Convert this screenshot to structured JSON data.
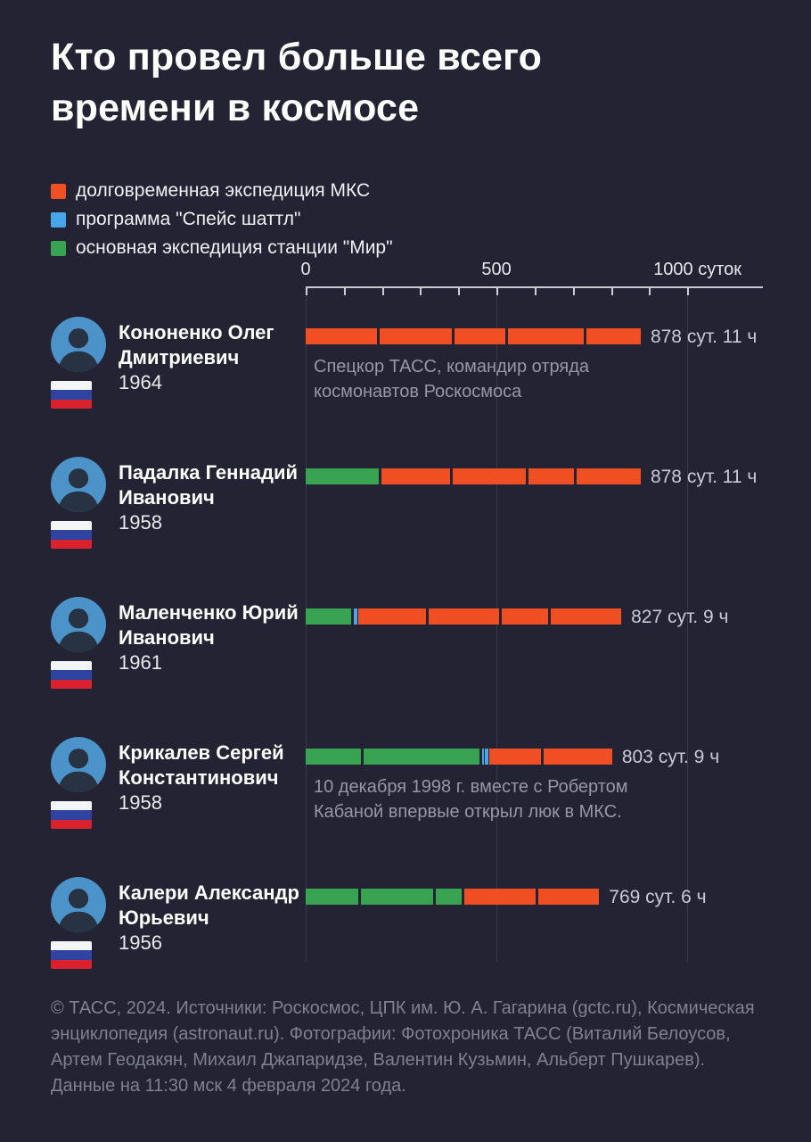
{
  "title": "Кто провел больше всего\nвремени в космосе",
  "legend": [
    {
      "key": "iss",
      "label": "долговременная экспедиция МКС"
    },
    {
      "key": "shuttle",
      "label": "программа \"Спейс шаттл\""
    },
    {
      "key": "mir",
      "label": "основная экспедиция станции \"Мир\""
    }
  ],
  "colors": {
    "iss": "#f04e23",
    "shuttle": "#47a6e9",
    "mir": "#38a452",
    "background": "#232333",
    "axis": "#c9ccd4"
  },
  "chart_data": {
    "type": "bar",
    "orientation": "horizontal",
    "title": "Кто провел больше всего времени в космосе",
    "unit_label": "суток",
    "legend_position": "top-left",
    "axis": {
      "min": 0,
      "max": 1000,
      "minor_step": 100,
      "labels": [
        {
          "value": 0,
          "text": "0"
        },
        {
          "value": 500,
          "text": "500"
        },
        {
          "value": 1000,
          "text": "1000 суток"
        }
      ]
    },
    "bars": [
      {
        "name": "Кононенко Олег\nДмитриевич",
        "year": "1964",
        "total_label": "878 сут. 11 ч",
        "total_days": 878,
        "note": "Спецкор ТАСС, командир отряда\nкосмонавтов Роскосмоса",
        "segments": [
          {
            "type": "iss",
            "days": 195
          },
          {
            "type": "iss",
            "days": 195
          },
          {
            "type": "iss",
            "days": 140
          },
          {
            "type": "iss",
            "days": 206
          },
          {
            "type": "iss",
            "days": 142
          }
        ]
      },
      {
        "name": "Падалка Геннадий\nИванович",
        "year": "1958",
        "total_label": "878 сут. 11 ч",
        "total_days": 878,
        "note": "",
        "segments": [
          {
            "type": "mir",
            "days": 198
          },
          {
            "type": "iss",
            "days": 187
          },
          {
            "type": "iss",
            "days": 199
          },
          {
            "type": "iss",
            "days": 125
          },
          {
            "type": "iss",
            "days": 169
          }
        ]
      },
      {
        "name": "Маленченко Юрий\nИванович",
        "year": "1961",
        "total_label": "827 сут. 9 ч",
        "total_days": 827,
        "note": "",
        "segments": [
          {
            "type": "mir",
            "days": 126
          },
          {
            "type": "shuttle",
            "days": 12
          },
          {
            "type": "iss",
            "days": 185
          },
          {
            "type": "iss",
            "days": 192
          },
          {
            "type": "iss",
            "days": 127
          },
          {
            "type": "iss",
            "days": 185
          }
        ]
      },
      {
        "name": "Крикалев Сергей\nКонстантинович",
        "year": "1958",
        "total_label": "803 сут. 9 ч",
        "total_days": 803,
        "note": "10 декабря 1998 г. вместе с Робертом\nКабаной впервые открыл люк в МКС.",
        "segments": [
          {
            "type": "mir",
            "days": 151
          },
          {
            "type": "mir",
            "days": 311
          },
          {
            "type": "shuttle",
            "days": 8
          },
          {
            "type": "shuttle",
            "days": 12
          },
          {
            "type": "iss",
            "days": 141
          },
          {
            "type": "iss",
            "days": 180
          }
        ]
      },
      {
        "name": "Калери Александр\nЮрьевич",
        "year": "1956",
        "total_label": "769 сут. 6 ч",
        "total_days": 769,
        "note": "",
        "segments": [
          {
            "type": "mir",
            "days": 145
          },
          {
            "type": "mir",
            "days": 197
          },
          {
            "type": "mir",
            "days": 73
          },
          {
            "type": "iss",
            "days": 195
          },
          {
            "type": "iss",
            "days": 159
          }
        ]
      }
    ]
  },
  "footer": "© ТАСС, 2024. Источники: Роскосмос, ЦПК им. Ю. А. Гагарина (gctc.ru), Космическая\nэнциклопедия (astronaut.ru). Фотографии: Фотохроника ТАСС (Виталий Белоусов,\nАртем Геодакян, Михаил Джапаридзе, Валентин Кузьмин, Альберт Пушкарев).\nДанные на 11:30 мск 4 февраля 2024 года."
}
